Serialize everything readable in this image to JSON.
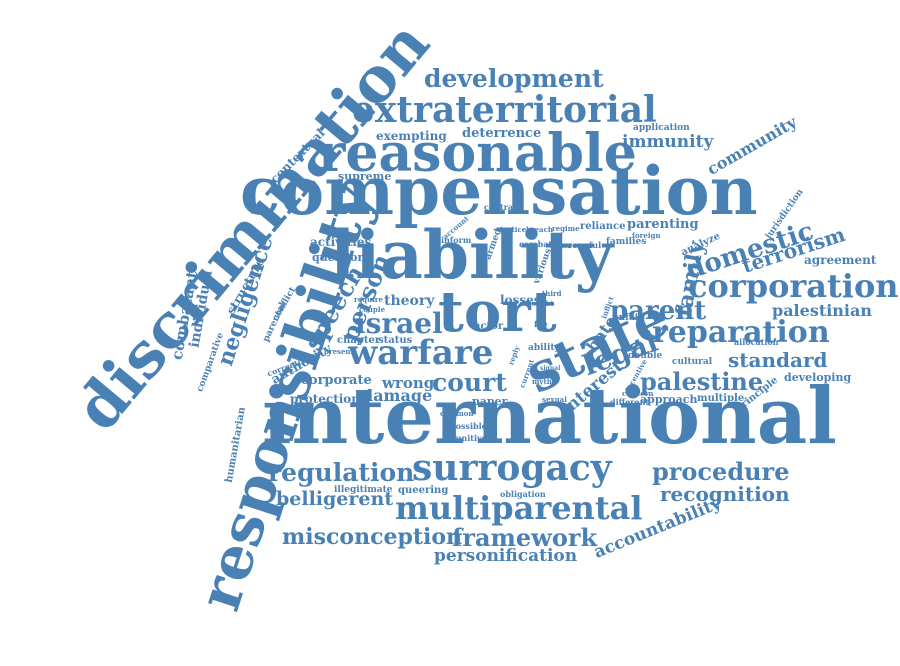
{
  "cloud": {
    "color": "#4a81b4",
    "words": [
      {
        "text": "discrimination"
      },
      {
        "text": "responsibility"
      },
      {
        "text": "compensation"
      },
      {
        "text": "international"
      },
      {
        "text": "liability"
      },
      {
        "text": "reasonable"
      },
      {
        "text": "extraterritorial"
      },
      {
        "text": "tort"
      },
      {
        "text": "state"
      },
      {
        "text": "surrogacy"
      },
      {
        "text": "multiparental"
      },
      {
        "text": "warfare"
      },
      {
        "text": "corporation"
      },
      {
        "text": "reparation"
      },
      {
        "text": "development"
      },
      {
        "text": "palestine"
      },
      {
        "text": "domestic"
      },
      {
        "text": "regulation"
      },
      {
        "text": "procedure"
      },
      {
        "text": "recognition"
      },
      {
        "text": "framework"
      },
      {
        "text": "misconception"
      },
      {
        "text": "court"
      },
      {
        "text": "israel"
      },
      {
        "text": "parent"
      },
      {
        "text": "negligence"
      },
      {
        "text": "speech"
      },
      {
        "text": "person"
      },
      {
        "text": "legal"
      },
      {
        "text": "standard"
      },
      {
        "text": "belligerent"
      },
      {
        "text": "personification"
      },
      {
        "text": "accountability"
      },
      {
        "text": "terrorism"
      },
      {
        "text": "palestinian"
      },
      {
        "text": "family"
      },
      {
        "text": "community"
      },
      {
        "text": "immunity"
      },
      {
        "text": "damage"
      },
      {
        "text": "wrong"
      },
      {
        "text": "interest"
      },
      {
        "text": "hate"
      },
      {
        "text": "combatant"
      },
      {
        "text": "individual"
      },
      {
        "text": "structure"
      },
      {
        "text": "contextual"
      },
      {
        "text": "exempting"
      },
      {
        "text": "deterrence"
      },
      {
        "text": "parenting"
      },
      {
        "text": "agreement"
      },
      {
        "text": "activities"
      },
      {
        "text": "question"
      },
      {
        "text": "theory"
      },
      {
        "text": "authority"
      },
      {
        "text": "corporate"
      },
      {
        "text": "protection"
      },
      {
        "text": "paper"
      },
      {
        "text": "approach"
      },
      {
        "text": "developing"
      },
      {
        "text": "queering"
      },
      {
        "text": "illegitimate"
      },
      {
        "text": "humanitarian"
      },
      {
        "text": "comparative"
      },
      {
        "text": "supreme"
      },
      {
        "text": "chapter"
      },
      {
        "text": "status"
      },
      {
        "text": "losses"
      },
      {
        "text": "analyze"
      },
      {
        "text": "principle"
      },
      {
        "text": "jurisdiction"
      },
      {
        "text": "reliance"
      },
      {
        "text": "families"
      },
      {
        "text": "double"
      },
      {
        "text": "cultural"
      },
      {
        "text": "multiple"
      },
      {
        "text": "different"
      },
      {
        "text": "application"
      },
      {
        "text": "obligation"
      },
      {
        "text": "actor"
      },
      {
        "text": "parental"
      },
      {
        "text": "conflict"
      },
      {
        "text": "corrective"
      },
      {
        "text": "possible"
      },
      {
        "text": "punitive"
      },
      {
        "text": "unfair"
      },
      {
        "text": "allocation"
      },
      {
        "text": "concern"
      },
      {
        "text": "ability"
      },
      {
        "text": "inform"
      },
      {
        "text": "wrongful"
      },
      {
        "text": "combat"
      },
      {
        "text": "regime"
      },
      {
        "text": "breach"
      },
      {
        "text": "justice"
      },
      {
        "text": "account"
      },
      {
        "text": "contract"
      },
      {
        "text": "armed"
      },
      {
        "text": "various"
      },
      {
        "text": "foreign"
      },
      {
        "text": "common"
      },
      {
        "text": "sexual"
      },
      {
        "text": "myth"
      },
      {
        "text": "third"
      },
      {
        "text": "lgbt"
      },
      {
        "text": "fee"
      },
      {
        "text": "present"
      },
      {
        "text": "inflict"
      },
      {
        "text": "require"
      },
      {
        "text": "couple"
      },
      {
        "text": "reply"
      },
      {
        "text": "current"
      },
      {
        "text": "incentive"
      },
      {
        "text": "signal"
      }
    ]
  }
}
